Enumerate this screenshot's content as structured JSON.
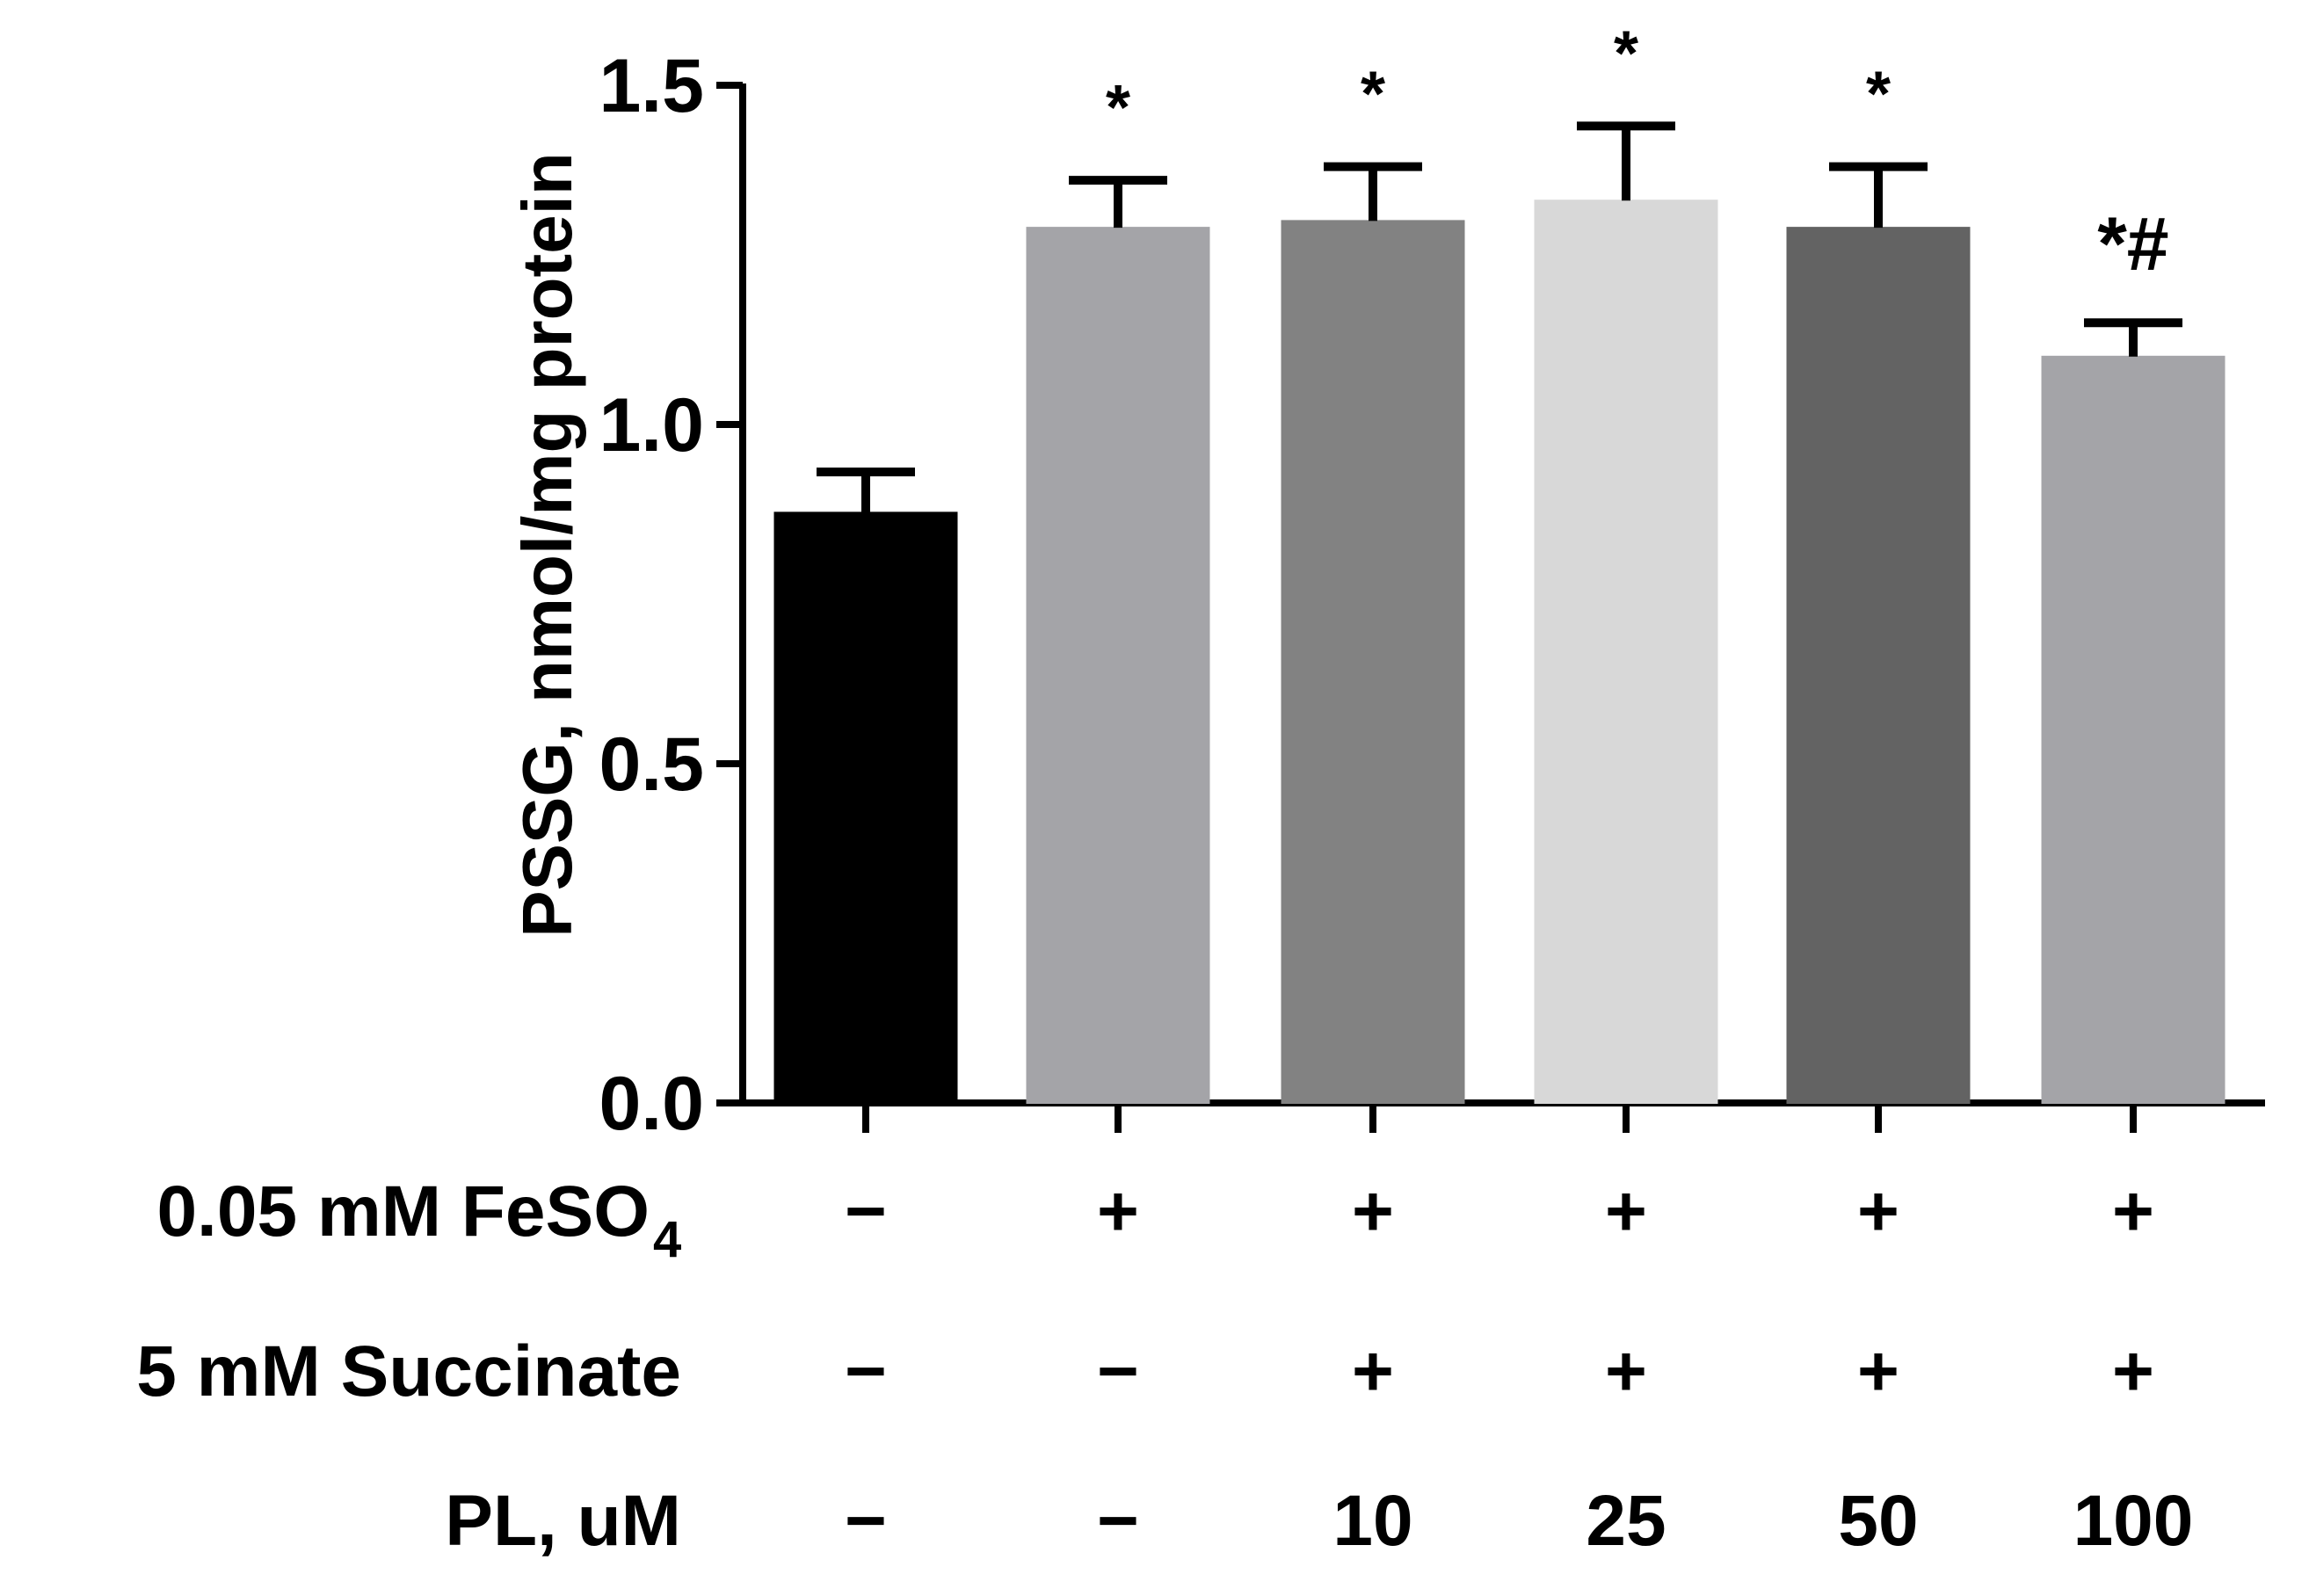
{
  "chart_data": {
    "type": "bar",
    "title": "",
    "xlabel": "",
    "ylabel": "PSSG, nmol/mg protein",
    "ylim": [
      0.0,
      1.5
    ],
    "yticks": [
      "0.0",
      "0.5",
      "1.0",
      "1.5"
    ],
    "yticks_values": [
      0.0,
      0.5,
      1.0,
      1.5
    ],
    "grid": false,
    "legend": "none",
    "bars": [
      {
        "value": 0.87,
        "error": 0.06,
        "color": "#000000",
        "annotation": ""
      },
      {
        "value": 1.29,
        "error": 0.07,
        "color": "#a4a4a8",
        "annotation": "*"
      },
      {
        "value": 1.3,
        "error": 0.08,
        "color": "#828282",
        "annotation": "*"
      },
      {
        "value": 1.33,
        "error": 0.11,
        "color": "#d8d8d8",
        "annotation": "*"
      },
      {
        "value": 1.29,
        "error": 0.09,
        "color": "#636363",
        "annotation": "*"
      },
      {
        "value": 1.1,
        "error": 0.05,
        "color": "#a4a4a8",
        "annotation": "*#"
      }
    ],
    "conditions": [
      {
        "label": "0.05 mM FeSO",
        "subscript": "4",
        "values": [
          "−",
          "+",
          "+",
          "+",
          "+",
          "+"
        ]
      },
      {
        "label": "5 mM Succinate",
        "subscript": "",
        "values": [
          "−",
          "−",
          "+",
          "+",
          "+",
          "+"
        ]
      },
      {
        "label": "PL, uM",
        "subscript": "",
        "values": [
          "−",
          "−",
          "10",
          "25",
          "50",
          "100"
        ]
      }
    ]
  }
}
